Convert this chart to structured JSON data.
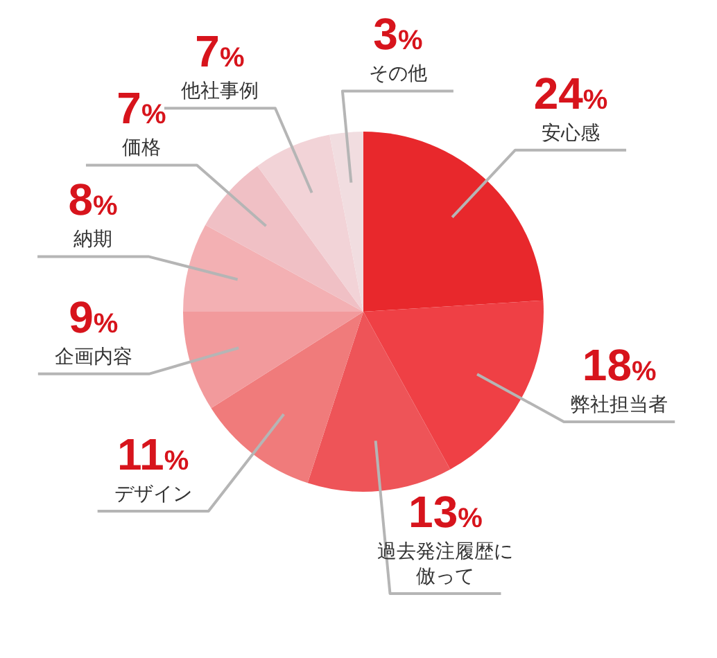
{
  "chart_data": {
    "type": "pie",
    "categories": [
      "安心感",
      "弊社担当者",
      "過去発注履歴に倣って",
      "デザイン",
      "企画内容",
      "納期",
      "価格",
      "他社事例",
      "その他"
    ],
    "values": [
      24,
      18,
      13,
      11,
      9,
      8,
      7,
      7,
      3
    ],
    "colors": [
      "#e8282c",
      "#ef4045",
      "#ee5458",
      "#f07b7b",
      "#f29a9c",
      "#f3b0b3",
      "#f0c0c5",
      "#f2d3d7",
      "#f1dde0"
    ],
    "value_labels": [
      "24%",
      "18%",
      "13%",
      "11%",
      "9%",
      "8%",
      "7%",
      "7%",
      "3%"
    ]
  }
}
